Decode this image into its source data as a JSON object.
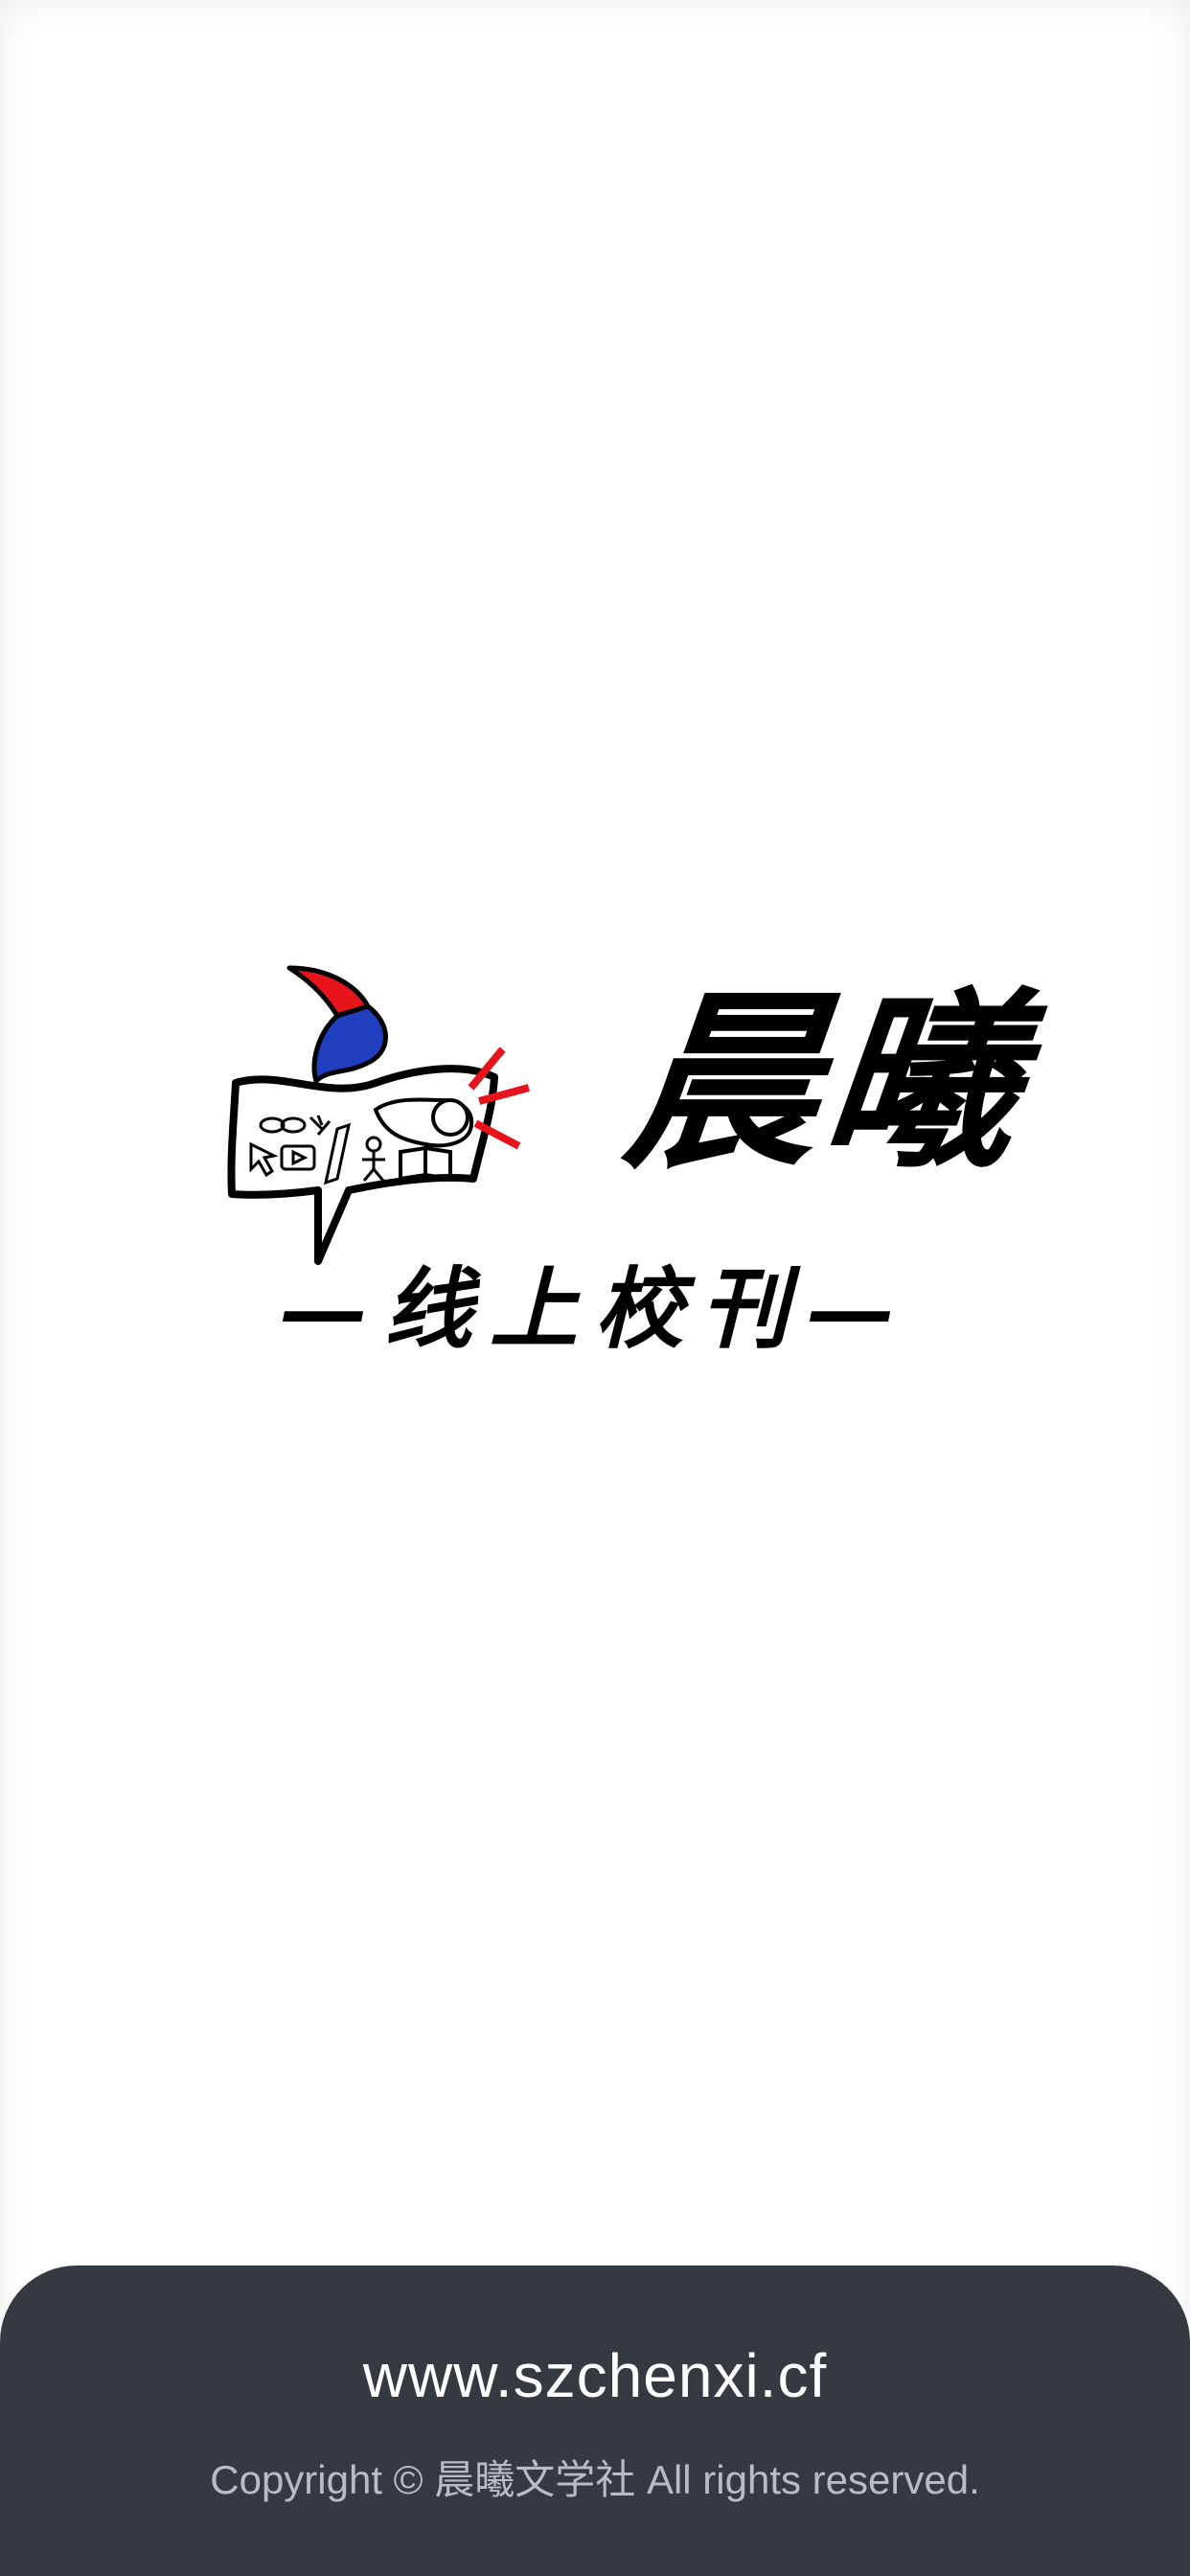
{
  "brand": {
    "name": "晨曦",
    "tagline": "—线上校刊—"
  },
  "footer": {
    "url": "www.szchenxi.cf",
    "copyright": "Copyright © 晨曦文学社 All rights reserved."
  },
  "colors": {
    "background": "#ffffff",
    "footer_background": "#353a41",
    "footer_url_text": "#ffffff",
    "footer_copyright_text": "#b9bcc1",
    "logo_red": "#e8141c",
    "logo_blue": "#1f3fbf",
    "logo_black": "#000000"
  }
}
